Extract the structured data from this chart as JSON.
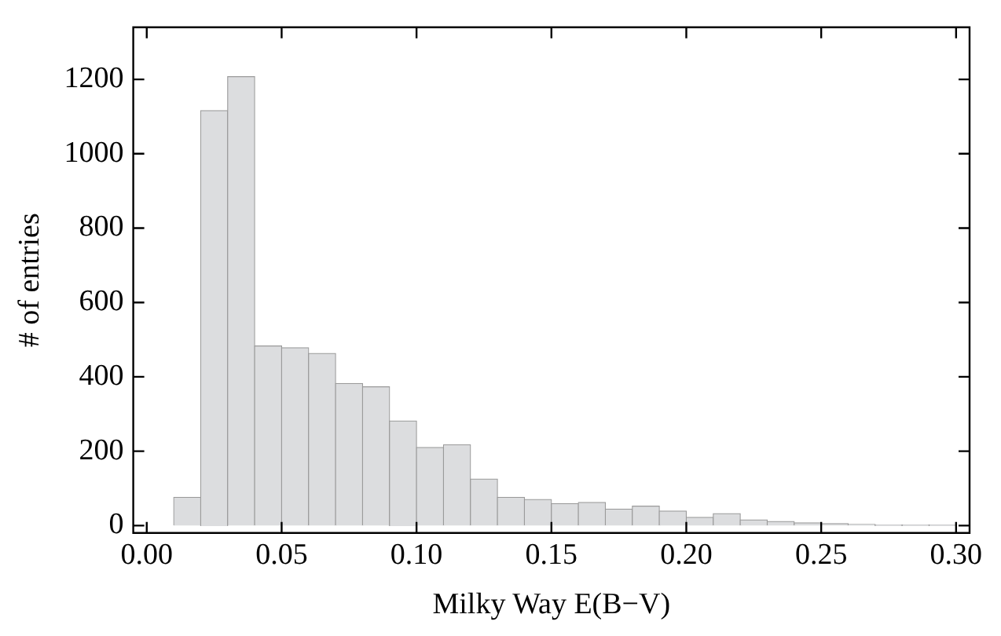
{
  "chart_data": {
    "type": "histogram",
    "xlabel": "Milky Way E(B−V)",
    "ylabel": "# of entries",
    "bins": [
      0.01,
      0.02,
      0.03,
      0.04,
      0.05,
      0.06,
      0.07,
      0.08,
      0.09,
      0.1,
      0.11,
      0.12,
      0.13,
      0.14,
      0.15,
      0.16,
      0.17,
      0.18,
      0.19,
      0.2,
      0.21,
      0.22,
      0.23,
      0.24,
      0.25,
      0.26,
      0.27,
      0.28,
      0.29,
      0.3
    ],
    "values": [
      76,
      1116,
      1207,
      483,
      478,
      463,
      382,
      373,
      281,
      210,
      217,
      125,
      76,
      70,
      59,
      62,
      44,
      52,
      39,
      22,
      32,
      15,
      11,
      7,
      5,
      3,
      2,
      2,
      2
    ],
    "color": "#dcdddf",
    "xlim": [
      -0.005,
      0.305
    ],
    "xticks": [
      {
        "value": 0,
        "label": "0.00"
      },
      {
        "value": 0.05,
        "label": "0.05"
      },
      {
        "value": 0.1,
        "label": "0.10"
      },
      {
        "value": 0.15,
        "label": "0.15"
      },
      {
        "value": 0.2,
        "label": "0.20"
      },
      {
        "value": 0.25,
        "label": "0.25"
      },
      {
        "value": 0.3,
        "label": "0.30"
      }
    ],
    "ylim": [
      -20,
      1340
    ],
    "yticks": [
      0,
      200,
      400,
      600,
      800,
      1000,
      1200
    ],
    "grid": false,
    "legend": false
  }
}
